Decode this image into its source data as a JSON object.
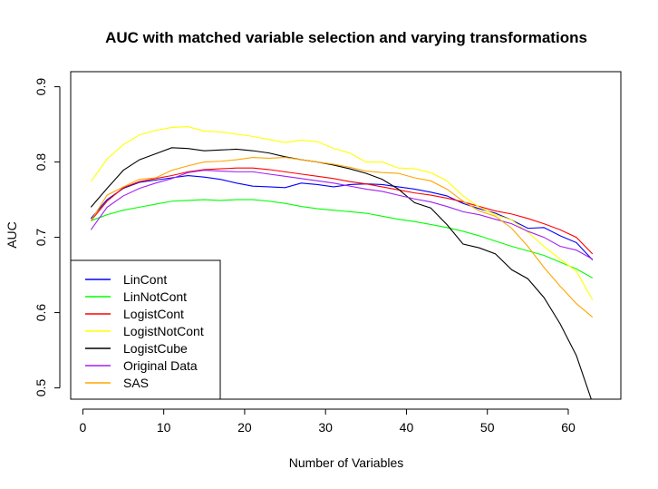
{
  "chart_data": {
    "type": "line",
    "title": "AUC with matched variable selection and varying transformations",
    "xlabel": "Number of Variables",
    "ylabel": "AUC",
    "xlim": [
      -1.5,
      66.5
    ],
    "ylim": [
      0.485,
      0.92
    ],
    "xticks": [
      0,
      10,
      20,
      30,
      40,
      50,
      60
    ],
    "yticks": [
      0.5,
      0.6,
      0.7,
      0.8,
      0.9
    ],
    "legend_position": "bottom-left",
    "series": [
      {
        "name": "LinCont",
        "color": "#0000FF",
        "x": [
          1,
          3,
          5,
          7,
          9,
          11,
          13,
          15,
          17,
          19,
          21,
          23,
          25,
          27,
          29,
          31,
          33,
          35,
          37,
          39,
          41,
          43,
          45,
          47,
          49,
          51,
          53,
          55,
          57,
          59,
          61,
          63
        ],
        "y": [
          0.725,
          0.75,
          0.765,
          0.773,
          0.776,
          0.779,
          0.782,
          0.78,
          0.777,
          0.772,
          0.768,
          0.767,
          0.766,
          0.772,
          0.77,
          0.767,
          0.77,
          0.771,
          0.77,
          0.767,
          0.764,
          0.76,
          0.755,
          0.745,
          0.738,
          0.732,
          0.723,
          0.712,
          0.713,
          0.702,
          0.693,
          0.67
        ]
      },
      {
        "name": "LinNotCont",
        "color": "#00FF00",
        "x": [
          1,
          3,
          5,
          7,
          9,
          11,
          13,
          15,
          17,
          19,
          21,
          23,
          25,
          27,
          29,
          31,
          33,
          35,
          37,
          39,
          41,
          43,
          45,
          47,
          49,
          51,
          53,
          55,
          57,
          59,
          61,
          63
        ],
        "y": [
          0.722,
          0.73,
          0.736,
          0.74,
          0.744,
          0.748,
          0.749,
          0.75,
          0.749,
          0.75,
          0.75,
          0.748,
          0.745,
          0.741,
          0.738,
          0.736,
          0.734,
          0.732,
          0.728,
          0.724,
          0.721,
          0.717,
          0.713,
          0.708,
          0.702,
          0.695,
          0.688,
          0.682,
          0.676,
          0.667,
          0.658,
          0.646
        ]
      },
      {
        "name": "LogistCont",
        "color": "#FF0000",
        "x": [
          1,
          3,
          5,
          7,
          9,
          11,
          13,
          15,
          17,
          19,
          21,
          23,
          25,
          27,
          29,
          31,
          33,
          35,
          37,
          39,
          41,
          43,
          45,
          47,
          49,
          51,
          53,
          55,
          57,
          59,
          61,
          63
        ],
        "y": [
          0.722,
          0.748,
          0.766,
          0.774,
          0.778,
          0.782,
          0.787,
          0.79,
          0.791,
          0.792,
          0.792,
          0.79,
          0.787,
          0.784,
          0.781,
          0.778,
          0.774,
          0.771,
          0.767,
          0.763,
          0.759,
          0.756,
          0.752,
          0.747,
          0.741,
          0.735,
          0.731,
          0.725,
          0.718,
          0.71,
          0.7,
          0.678
        ]
      },
      {
        "name": "LogistNotCont",
        "color": "#FFFF00",
        "x": [
          1,
          3,
          5,
          7,
          9,
          11,
          13,
          15,
          17,
          19,
          21,
          23,
          25,
          27,
          29,
          31,
          33,
          35,
          37,
          39,
          41,
          43,
          45,
          47,
          49,
          51,
          53,
          55,
          57,
          59,
          61,
          63
        ],
        "y": [
          0.774,
          0.804,
          0.823,
          0.836,
          0.842,
          0.846,
          0.847,
          0.841,
          0.84,
          0.837,
          0.834,
          0.83,
          0.826,
          0.829,
          0.827,
          0.818,
          0.812,
          0.8,
          0.8,
          0.792,
          0.791,
          0.786,
          0.775,
          0.755,
          0.74,
          0.73,
          0.723,
          0.707,
          0.688,
          0.671,
          0.655,
          0.617
        ]
      },
      {
        "name": "LogistCube",
        "color": "#000000",
        "x": [
          1,
          3,
          5,
          7,
          9,
          11,
          13,
          15,
          17,
          19,
          21,
          23,
          25,
          27,
          29,
          31,
          33,
          35,
          37,
          39,
          41,
          43,
          45,
          47,
          49,
          51,
          53,
          55,
          57,
          59,
          61,
          63
        ],
        "y": [
          0.74,
          0.765,
          0.789,
          0.803,
          0.811,
          0.819,
          0.818,
          0.815,
          0.816,
          0.817,
          0.815,
          0.812,
          0.807,
          0.803,
          0.8,
          0.796,
          0.791,
          0.785,
          0.777,
          0.764,
          0.746,
          0.739,
          0.717,
          0.691,
          0.686,
          0.678,
          0.657,
          0.645,
          0.62,
          0.585,
          0.543,
          0.48
        ]
      },
      {
        "name": "Original Data",
        "color": "#A020F0",
        "x": [
          1,
          3,
          5,
          7,
          9,
          11,
          13,
          15,
          17,
          19,
          21,
          23,
          25,
          27,
          29,
          31,
          33,
          35,
          37,
          39,
          41,
          43,
          45,
          47,
          49,
          51,
          53,
          55,
          57,
          59,
          61,
          63
        ],
        "y": [
          0.71,
          0.74,
          0.755,
          0.765,
          0.772,
          0.778,
          0.786,
          0.789,
          0.788,
          0.787,
          0.787,
          0.784,
          0.781,
          0.778,
          0.775,
          0.772,
          0.768,
          0.764,
          0.761,
          0.756,
          0.751,
          0.747,
          0.741,
          0.734,
          0.73,
          0.724,
          0.718,
          0.708,
          0.7,
          0.688,
          0.683,
          0.671
        ]
      },
      {
        "name": "SAS",
        "color": "#FFA500",
        "x": [
          1,
          3,
          5,
          7,
          9,
          11,
          13,
          15,
          17,
          19,
          21,
          23,
          25,
          27,
          29,
          31,
          33,
          35,
          37,
          39,
          41,
          43,
          45,
          47,
          49,
          51,
          53,
          55,
          57,
          59,
          61,
          63
        ],
        "y": [
          0.722,
          0.756,
          0.767,
          0.777,
          0.779,
          0.789,
          0.795,
          0.8,
          0.801,
          0.803,
          0.806,
          0.805,
          0.806,
          0.803,
          0.8,
          0.797,
          0.793,
          0.788,
          0.786,
          0.785,
          0.779,
          0.775,
          0.764,
          0.748,
          0.735,
          0.728,
          0.712,
          0.688,
          0.66,
          0.635,
          0.612,
          0.594
        ]
      }
    ]
  }
}
